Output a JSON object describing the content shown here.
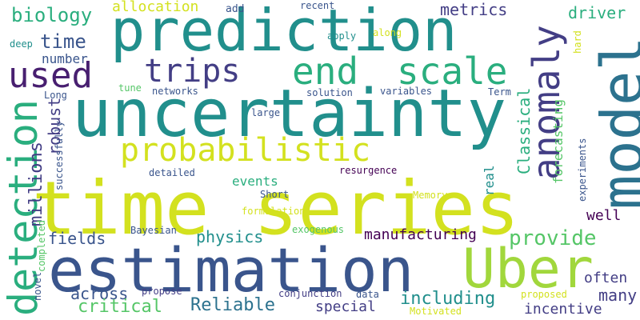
{
  "palette": {
    "yellow": "#d3e11f",
    "lime": "#a1d73c",
    "green": "#55c667",
    "teal_green": "#2aae7e",
    "teal": "#218f8c",
    "blue_teal": "#2c728e",
    "blue": "#3a558c",
    "indigo": "#433e85",
    "purple": "#481f70",
    "dark_purple": "#440154"
  },
  "words": [
    {
      "text": "time series"
    },
    {
      "text": "uncertainty"
    },
    {
      "text": "estimation"
    },
    {
      "text": "prediction"
    },
    {
      "text": "model"
    },
    {
      "text": "Uber"
    },
    {
      "text": "detection"
    },
    {
      "text": "end"
    },
    {
      "text": "scale"
    },
    {
      "text": "anomaly"
    },
    {
      "text": "probabilistic"
    },
    {
      "text": "trips"
    },
    {
      "text": "used"
    },
    {
      "text": "biology"
    },
    {
      "text": "time"
    },
    {
      "text": "number"
    },
    {
      "text": "allocation"
    },
    {
      "text": "add"
    },
    {
      "text": "recent"
    },
    {
      "text": "metrics"
    },
    {
      "text": "driver"
    },
    {
      "text": "deep"
    },
    {
      "text": "apply"
    },
    {
      "text": "along"
    },
    {
      "text": "hard"
    },
    {
      "text": "Long"
    },
    {
      "text": "tune"
    },
    {
      "text": "networks"
    },
    {
      "text": "solution"
    },
    {
      "text": "variables"
    },
    {
      "text": "Term"
    },
    {
      "text": "large"
    },
    {
      "text": "Classical"
    },
    {
      "text": "robust"
    },
    {
      "text": "successfully"
    },
    {
      "text": "forecasting"
    },
    {
      "text": "experiments"
    },
    {
      "text": "millions"
    },
    {
      "text": "detailed"
    },
    {
      "text": "resurgence"
    },
    {
      "text": "events"
    },
    {
      "text": "real"
    },
    {
      "text": "Short"
    },
    {
      "text": "Memory"
    },
    {
      "text": "formulation"
    },
    {
      "text": "fields"
    },
    {
      "text": "physics"
    },
    {
      "text": "provide"
    },
    {
      "text": "Bayesian"
    },
    {
      "text": "exogenous"
    },
    {
      "text": "manufacturing"
    },
    {
      "text": "well"
    },
    {
      "text": "completed"
    },
    {
      "text": "often"
    },
    {
      "text": "novel"
    },
    {
      "text": "propose"
    },
    {
      "text": "conjunction"
    },
    {
      "text": "data"
    },
    {
      "text": "proposed"
    },
    {
      "text": "across"
    },
    {
      "text": "including"
    },
    {
      "text": "many"
    },
    {
      "text": "critical"
    },
    {
      "text": "Reliable"
    },
    {
      "text": "special"
    },
    {
      "text": "incentive"
    },
    {
      "text": "Motivated"
    }
  ]
}
